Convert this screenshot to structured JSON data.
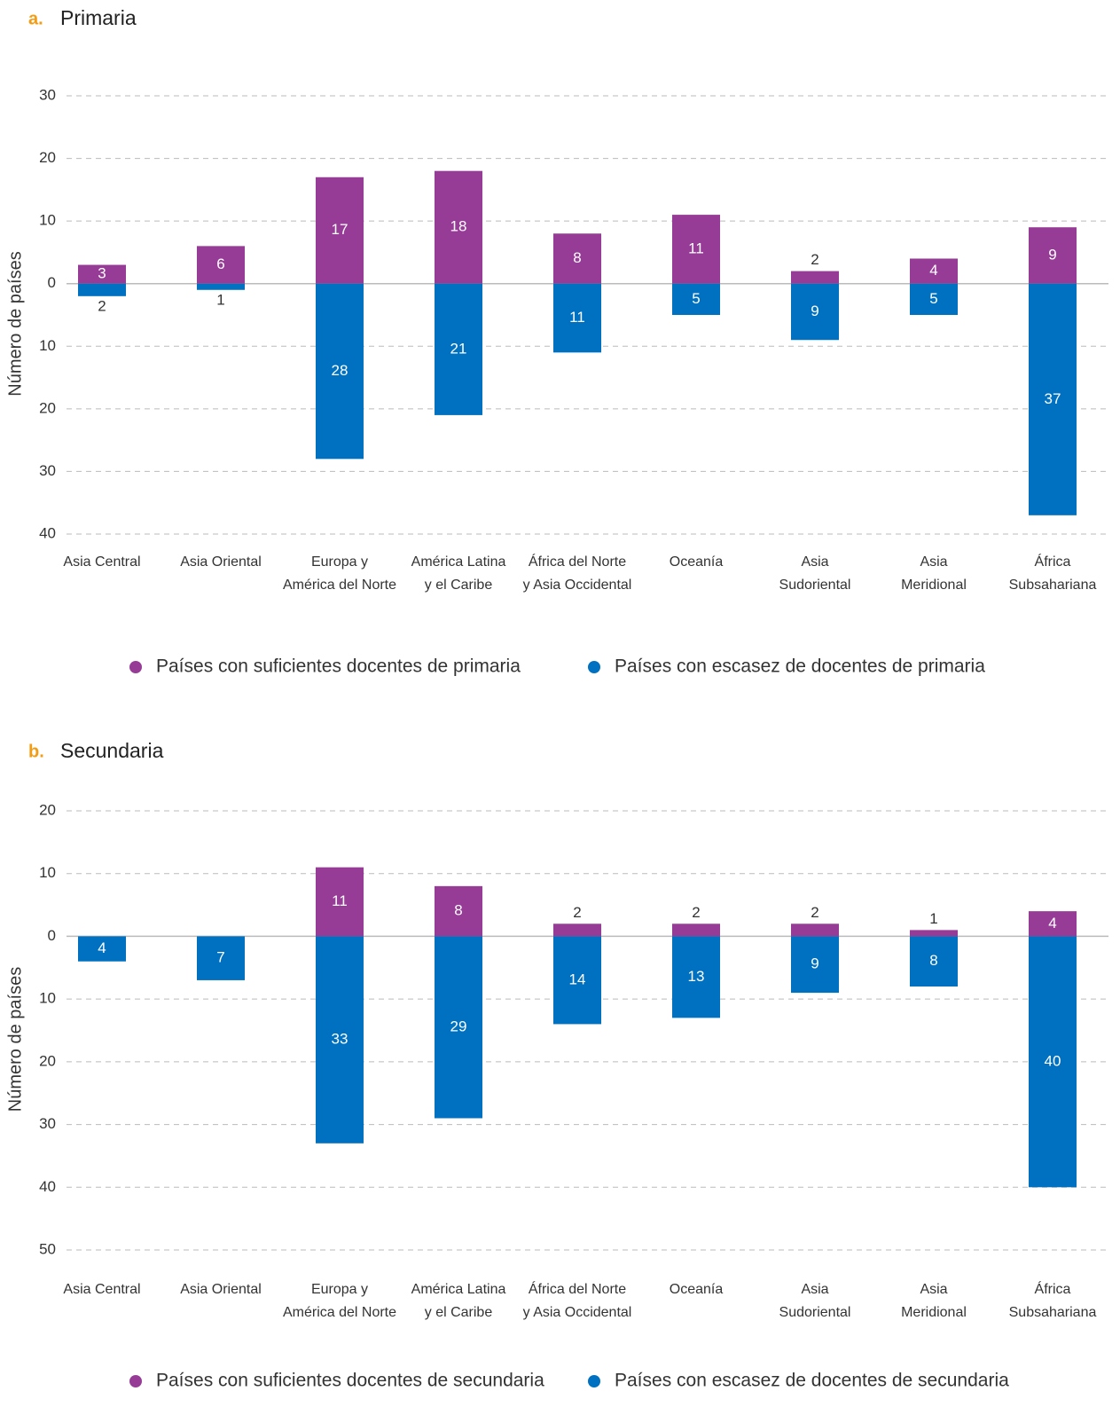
{
  "chart_data": [
    {
      "type": "bar",
      "label": "a.",
      "title": "Primaria",
      "y_label": "Número de países",
      "categories": [
        [
          "Asia Central"
        ],
        [
          "Asia Oriental"
        ],
        [
          "Europa y",
          "América del Norte"
        ],
        [
          "América Latina",
          "y el Caribe"
        ],
        [
          "África del Norte",
          "y Asia Occidental"
        ],
        [
          "Oceanía"
        ],
        [
          "Asia",
          "Sudoriental"
        ],
        [
          "Asia",
          "Meridional"
        ],
        [
          "África",
          "Subsahariana"
        ]
      ],
      "series": [
        {
          "name": "Países con suficientes docentes de primaria",
          "color": "#963c96",
          "values": [
            3,
            6,
            17,
            18,
            8,
            11,
            2,
            4,
            9
          ]
        },
        {
          "name": "Países con escasez de docentes de primaria",
          "color": "#0070c0",
          "values": [
            -2,
            -1,
            -28,
            -21,
            -11,
            -5,
            -9,
            -5,
            -37
          ],
          "value_labels": [
            "2",
            "1",
            "28",
            "21",
            "11",
            "5",
            "9",
            "5",
            "37"
          ]
        }
      ],
      "ylim": [
        -40,
        30
      ],
      "yticks": [
        30,
        20,
        10,
        0,
        {
          "value": -10,
          "label": "10"
        },
        {
          "value": -20,
          "label": "20"
        },
        {
          "value": -30,
          "label": "30"
        },
        {
          "value": -40,
          "label": "40"
        }
      ],
      "grid": true
    },
    {
      "type": "bar",
      "label": "b.",
      "title": "Secundaria",
      "y_label": "Número de países",
      "categories": [
        [
          "Asia Central"
        ],
        [
          "Asia Oriental"
        ],
        [
          "Europa y",
          "América del Norte"
        ],
        [
          "América Latina",
          "y el Caribe"
        ],
        [
          "África del Norte",
          "y Asia Occidental"
        ],
        [
          "Oceanía"
        ],
        [
          "Asia",
          "Sudoriental"
        ],
        [
          "Asia",
          "Meridional"
        ],
        [
          "África",
          "Subsahariana"
        ]
      ],
      "series": [
        {
          "name": "Países con suficientes docentes de secundaria",
          "color": "#963c96",
          "values": [
            0,
            0,
            11,
            8,
            2,
            2,
            2,
            1,
            4
          ]
        },
        {
          "name": "Países con escasez de docentes de secundaria",
          "color": "#0070c0",
          "values": [
            -4,
            -7,
            -33,
            -29,
            -14,
            -13,
            -9,
            -8,
            -40
          ],
          "value_labels": [
            "4",
            "7",
            "33",
            "29",
            "14",
            "13",
            "9",
            "8",
            "40"
          ]
        }
      ],
      "ylim": [
        -50,
        20
      ],
      "yticks": [
        20,
        10,
        0,
        {
          "value": -10,
          "label": "10"
        },
        {
          "value": -20,
          "label": "20"
        },
        {
          "value": -30,
          "label": "30"
        },
        {
          "value": -40,
          "label": "40"
        },
        {
          "value": -50,
          "label": "50"
        }
      ],
      "grid": true
    }
  ]
}
